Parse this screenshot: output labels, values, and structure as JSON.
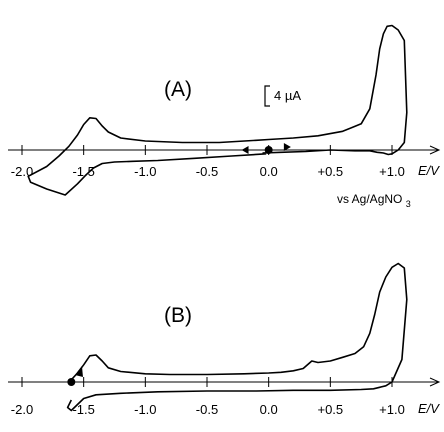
{
  "chart_data": [
    {
      "type": "line",
      "panel_label": "(A)",
      "x_unit_label": "E/V",
      "reference_label": "vs Ag/AgNO3",
      "scale_bar_label": "4 µA",
      "x_ticks": [
        -2.0,
        -1.5,
        -1.0,
        -0.5,
        0.0,
        0.5,
        1.0
      ],
      "x_tick_labels": [
        "-2.0",
        "-1.5",
        "-1.0",
        "-0.5",
        "0.0",
        "+0.5",
        "+1.0"
      ],
      "xlim": [
        -2.0,
        1.4
      ],
      "ylim": [
        -8,
        16
      ],
      "start_potential": 0.0,
      "series": [
        {
          "x": [
            -0.02,
            -0.3,
            -0.6,
            -0.9,
            -1.1,
            -1.25,
            -1.35,
            -1.42,
            -1.48,
            -1.55,
            -1.65,
            -1.8,
            -1.93,
            -1.95,
            -1.8,
            -1.7,
            -1.62,
            -1.55,
            -1.5,
            -1.45,
            -1.4,
            -1.35,
            -1.3,
            -1.2,
            -1.0,
            -0.7,
            -0.4,
            -0.1,
            0.0,
            0.2,
            0.4,
            0.6,
            0.75,
            0.82,
            0.87,
            0.9,
            0.93,
            0.96,
            1.0,
            1.05,
            1.1,
            1.12,
            1.1,
            1.05,
            1.0,
            0.97,
            0.93,
            0.88,
            0.82,
            0.7,
            0.5,
            0.3,
            0.1,
            -0.05
          ],
          "y": [
            -0.5,
            -0.8,
            -1.1,
            -1.4,
            -1.5,
            -1.6,
            -1.8,
            -2.4,
            -3.3,
            -4.5,
            -6,
            -5.2,
            -4.3,
            -3.5,
            -2.2,
            -0.8,
            0.5,
            2.0,
            3.4,
            4.3,
            4.2,
            3.2,
            2.4,
            1.6,
            1.2,
            1.0,
            1.0,
            1.3,
            1.4,
            1.6,
            1.9,
            2.5,
            3.5,
            5.5,
            10.0,
            13.5,
            15.5,
            16.5,
            16.6,
            16.0,
            14.6,
            5.0,
            1.0,
            0.0,
            -0.5,
            -0.6,
            -0.4,
            -0.3,
            -0.1,
            -0.1,
            0.0,
            -0.2,
            -0.3,
            -0.4
          ]
        }
      ]
    },
    {
      "type": "line",
      "panel_label": "(B)",
      "x_unit_label": "E/V",
      "x_ticks": [
        -2.0,
        -1.5,
        -1.0,
        -0.5,
        0.0,
        0.5,
        1.0
      ],
      "x_tick_labels": [
        "-2.0",
        "-1.5",
        "-1.0",
        "-0.5",
        "0.0",
        "+0.5",
        "+1.0"
      ],
      "xlim": [
        -2.0,
        1.4
      ],
      "ylim": [
        -6,
        16
      ],
      "start_potential": -1.6,
      "series": [
        {
          "x": [
            -1.6,
            -1.55,
            -1.5,
            -1.45,
            -1.4,
            -1.35,
            -1.3,
            -1.2,
            -1.0,
            -0.8,
            -0.5,
            -0.2,
            0.0,
            0.1,
            0.2,
            0.28,
            0.35,
            0.4,
            0.5,
            0.6,
            0.7,
            0.77,
            0.82,
            0.86,
            0.9,
            0.95,
            1.0,
            1.05,
            1.1,
            1.12,
            1.08,
            1.0,
            0.95,
            0.9,
            0.85,
            0.75,
            0.5,
            0.2,
            -0.1,
            -0.5,
            -0.9,
            -1.2,
            -1.4,
            -1.5,
            -1.55,
            -1.6,
            -1.63,
            -1.6
          ],
          "y": [
            0.3,
            1.2,
            2.3,
            3.5,
            3.6,
            2.8,
            1.9,
            1.4,
            1.1,
            1.0,
            1.0,
            1.1,
            1.2,
            1.3,
            1.5,
            1.8,
            2.8,
            2.6,
            2.8,
            3.3,
            3.8,
            4.7,
            6.5,
            9.0,
            12.0,
            14.0,
            15.3,
            15.8,
            15.2,
            11.0,
            3.0,
            0.0,
            -0.5,
            -0.7,
            -0.9,
            -1.0,
            -1.1,
            -1.1,
            -1.2,
            -1.2,
            -1.3,
            -1.5,
            -1.7,
            -2.2,
            -3.0,
            -3.8,
            -3.4,
            -2.4
          ]
        }
      ]
    }
  ]
}
